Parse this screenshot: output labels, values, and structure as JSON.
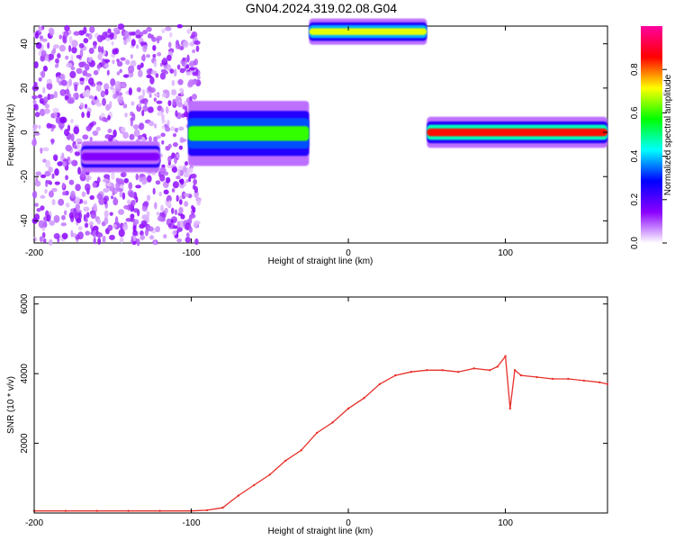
{
  "title": "GN04.2024.319.02.08.G04",
  "chart_data": [
    {
      "type": "heatmap",
      "xlabel": "Height of straight line (km)",
      "ylabel": "Frequency (Hz)",
      "xlim": [
        -200,
        165
      ],
      "ylim": [
        -50,
        48
      ],
      "x_ticks": [
        -200,
        -100,
        0,
        100
      ],
      "y_ticks": [
        -40,
        -20,
        0,
        20,
        40
      ],
      "colorbar": {
        "label": "Normalized spectral amplitude",
        "range": [
          0,
          1
        ],
        "ticks": [
          "0.0",
          "0.2",
          "0.4",
          "0.6",
          "0.8"
        ],
        "colormap": [
          "#ffffff",
          "#8a00ff",
          "#0000ff",
          "#00ffff",
          "#00ff00",
          "#ffff00",
          "#ff0000",
          "#ff00a0"
        ]
      },
      "features": [
        {
          "name": "noise",
          "x": [
            -200,
            -95
          ],
          "y": [
            -50,
            48
          ],
          "amplitude": 0.1
        },
        {
          "name": "track",
          "x": [
            -170,
            -120
          ],
          "y": [
            -14,
            -8
          ],
          "amplitude": 0.15
        },
        {
          "name": "track",
          "x": [
            -102,
            -25
          ],
          "y": [
            -7,
            6
          ],
          "amplitude": 0.6
        },
        {
          "name": "track",
          "x": [
            -25,
            50
          ],
          "y": [
            43,
            48
          ],
          "amplitude": 0.7
        },
        {
          "name": "track",
          "x": [
            50,
            165
          ],
          "y": [
            -3,
            3
          ],
          "amplitude": 0.85
        }
      ]
    },
    {
      "type": "line",
      "xlabel": "Height of straight line (km)",
      "ylabel": "SNR (10 * v/v)",
      "xlim": [
        -200,
        165
      ],
      "ylim": [
        0,
        6200
      ],
      "x_ticks": [
        -200,
        -100,
        0,
        100
      ],
      "y_ticks": [
        2000,
        4000,
        6000
      ],
      "color": "#e8302a",
      "x": [
        -200,
        -180,
        -160,
        -140,
        -120,
        -100,
        -90,
        -80,
        -70,
        -60,
        -50,
        -40,
        -30,
        -20,
        -10,
        0,
        10,
        20,
        30,
        40,
        50,
        60,
        70,
        80,
        90,
        95,
        100,
        103,
        106,
        110,
        120,
        130,
        140,
        150,
        160,
        165
      ],
      "values": [
        60,
        60,
        60,
        60,
        60,
        60,
        80,
        150,
        500,
        800,
        1100,
        1500,
        1800,
        2300,
        2600,
        3000,
        3300,
        3700,
        3950,
        4050,
        4100,
        4100,
        4050,
        4150,
        4100,
        4200,
        4500,
        3000,
        4100,
        3950,
        3900,
        3850,
        3850,
        3800,
        3750,
        3700
      ]
    }
  ]
}
